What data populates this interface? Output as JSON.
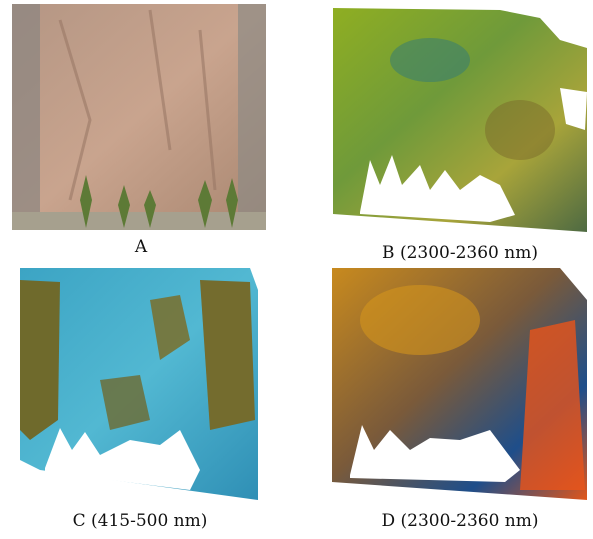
{
  "figure": {
    "panels": [
      {
        "caption": "A"
      },
      {
        "caption": "B (2300-2360 nm)"
      },
      {
        "caption": "C (415-500 nm)"
      },
      {
        "caption": "D (2300-2360 nm)"
      }
    ]
  }
}
